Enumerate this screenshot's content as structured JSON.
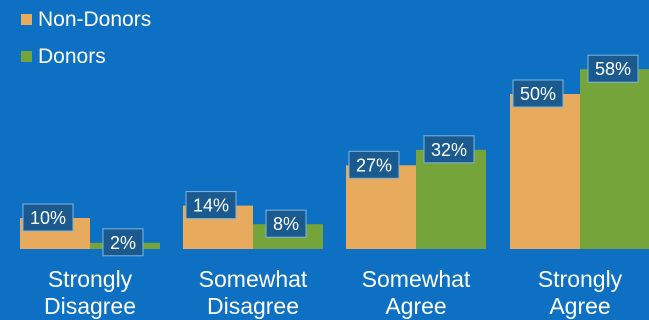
{
  "chart_data": {
    "type": "bar",
    "categories": [
      [
        "Strongly",
        "Disagree"
      ],
      [
        "Somewhat",
        "Disagree"
      ],
      [
        "Somewhat",
        "Agree"
      ],
      [
        "Strongly",
        "Agree"
      ]
    ],
    "series": [
      {
        "name": "Non-Donors",
        "values": [
          10,
          14,
          27,
          50
        ],
        "labels": [
          "10%",
          "14%",
          "27%",
          "50%"
        ]
      },
      {
        "name": "Donors",
        "values": [
          2,
          8,
          32,
          58
        ],
        "labels": [
          "2%",
          "8%",
          "32%",
          "58%"
        ]
      }
    ],
    "ylim": [
      0,
      65
    ],
    "grid": false,
    "legend_position": "top-left",
    "colors": {
      "background": "#0d70c2",
      "non_donors": "#e8aa5c",
      "donors": "#74a43a",
      "label_box": "#1a5a8f",
      "label_box_border": "#7fb6e0",
      "text": "#ffffff"
    }
  }
}
